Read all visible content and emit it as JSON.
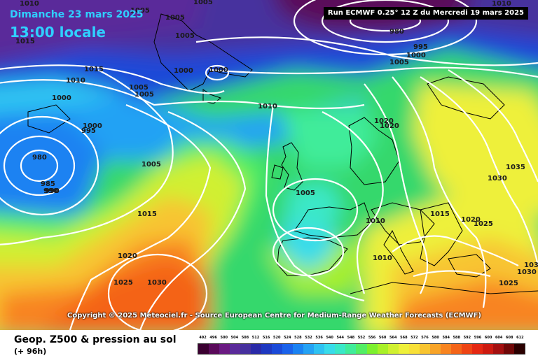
{
  "header": {
    "date": "Dimanche 23 mars 2025",
    "time": "13:00 locale",
    "run": "Run ECMWF 0.25° 12 Z du Mercredi 19 mars 2025"
  },
  "copyright": "Copyright © 2025 Meteociel.fr - Source European Centre for Medium-Range Weather Forecasts (ECMWF)",
  "legend": {
    "title": "Geop. Z500 & pression au sol",
    "subtitle": "(+ 96h)",
    "scale_values": [
      "492",
      "496",
      "500",
      "504",
      "508",
      "512",
      "516",
      "520",
      "524",
      "528",
      "532",
      "536",
      "540",
      "544",
      "548",
      "552",
      "556",
      "560",
      "564",
      "568",
      "572",
      "576",
      "580",
      "584",
      "588",
      "592",
      "596",
      "600",
      "604",
      "608",
      "612"
    ],
    "scale_colors": [
      "#3a0030",
      "#5a0a5a",
      "#6a1a82",
      "#5a2a9a",
      "#46309e",
      "#2a2aa8",
      "#1e38c0",
      "#1a4ad8",
      "#1a62ea",
      "#1a82f2",
      "#24a2f4",
      "#2ec2f2",
      "#38dcea",
      "#3ae8c8",
      "#40ec9a",
      "#52ee64",
      "#7cf02e",
      "#a8f028",
      "#d0f030",
      "#eef03a",
      "#f8e038",
      "#f8c430",
      "#f8a428",
      "#f88420",
      "#f46418",
      "#ee4414",
      "#e42812",
      "#cc1a10",
      "#a41010",
      "#700808",
      "#2a0000"
    ],
    "isobar_color": "#ffffff"
  },
  "isobars": [
    "1010",
    "1005",
    "1005",
    "1015",
    "1005",
    "1010",
    "1005",
    "1005",
    "1000",
    "1000",
    "1015",
    "1000",
    "990",
    "995",
    "1000",
    "1010",
    "980",
    "985",
    "990",
    "1005",
    "1010",
    "1000",
    "1005",
    "995",
    "980",
    "1020",
    "1020",
    "1005",
    "1035",
    "1030",
    "1005",
    "1015",
    "1010",
    "1020",
    "1025",
    "1015",
    "1010",
    "1020",
    "1025",
    "1030",
    "1030",
    "1025",
    "1030"
  ]
}
